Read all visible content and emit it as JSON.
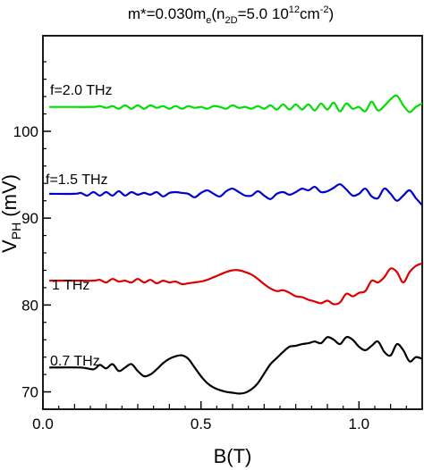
{
  "chart_data": {
    "type": "line",
    "title": {
      "parts": [
        {
          "text": "m*=0.030m",
          "style": "normal"
        },
        {
          "text": "e",
          "style": "sub"
        },
        {
          "text": "(n",
          "style": "normal"
        },
        {
          "text": "2D",
          "style": "sub"
        },
        {
          "text": "=5.0 10",
          "style": "normal"
        },
        {
          "text": "12",
          "style": "sup"
        },
        {
          "text": "cm",
          "style": "normal"
        },
        {
          "text": "-2",
          "style": "sup"
        },
        {
          "text": ")",
          "style": "normal"
        }
      ]
    },
    "xlabel": "B(T)",
    "ylabel": {
      "main": "V",
      "sub": "PH",
      "rest": " (mV)"
    },
    "xlim": [
      0,
      1.2
    ],
    "ylim": [
      68,
      111
    ],
    "xticks": [
      0.0,
      0.5,
      1.0
    ],
    "xtick_labels": [
      "0.0",
      "0.5",
      "1.0"
    ],
    "yticks": [
      70,
      80,
      90,
      100
    ],
    "ytick_labels": [
      "70",
      "80",
      "90",
      "100"
    ],
    "grid": false,
    "legend": "none",
    "series": [
      {
        "name": "f=2.0 THz",
        "color": "#00dd00",
        "x": [
          0.02,
          0.1,
          0.16,
          0.18,
          0.2,
          0.22,
          0.24,
          0.26,
          0.28,
          0.3,
          0.32,
          0.34,
          0.36,
          0.38,
          0.4,
          0.42,
          0.44,
          0.46,
          0.48,
          0.5,
          0.52,
          0.54,
          0.56,
          0.58,
          0.6,
          0.62,
          0.64,
          0.66,
          0.68,
          0.7,
          0.72,
          0.74,
          0.76,
          0.78,
          0.8,
          0.82,
          0.84,
          0.86,
          0.88,
          0.9,
          0.92,
          0.94,
          0.96,
          0.98,
          1.0,
          1.02,
          1.04,
          1.06,
          1.08,
          1.1,
          1.12,
          1.14,
          1.16,
          1.18,
          1.2
        ],
        "y": [
          102.8,
          102.8,
          102.8,
          102.9,
          102.7,
          102.9,
          102.6,
          103.0,
          102.6,
          103.0,
          102.6,
          103.0,
          102.7,
          102.9,
          102.6,
          102.9,
          102.6,
          102.9,
          102.7,
          102.8,
          102.6,
          102.9,
          102.8,
          102.6,
          103.0,
          102.7,
          102.8,
          102.6,
          102.9,
          102.6,
          103.0,
          102.5,
          103.1,
          102.5,
          103.1,
          102.5,
          103.1,
          102.4,
          103.2,
          102.5,
          103.3,
          102.3,
          103.2,
          102.6,
          102.8,
          102.3,
          103.4,
          102.4,
          102.9,
          103.7,
          104.1,
          103.0,
          102.2,
          102.8,
          103.2
        ]
      },
      {
        "name": "f=1.5 THz",
        "color": "#0000cc",
        "x": [
          0.02,
          0.1,
          0.12,
          0.14,
          0.16,
          0.18,
          0.2,
          0.22,
          0.24,
          0.26,
          0.28,
          0.3,
          0.32,
          0.34,
          0.36,
          0.38,
          0.4,
          0.42,
          0.44,
          0.46,
          0.48,
          0.5,
          0.52,
          0.54,
          0.56,
          0.58,
          0.6,
          0.62,
          0.64,
          0.66,
          0.68,
          0.7,
          0.72,
          0.74,
          0.76,
          0.78,
          0.8,
          0.82,
          0.84,
          0.86,
          0.88,
          0.9,
          0.92,
          0.94,
          0.96,
          0.98,
          1.0,
          1.02,
          1.04,
          1.06,
          1.08,
          1.1,
          1.12,
          1.14,
          1.16,
          1.18,
          1.2
        ],
        "y": [
          92.8,
          92.8,
          92.9,
          92.6,
          93.0,
          92.6,
          93.0,
          92.6,
          93.1,
          92.6,
          93.0,
          92.7,
          92.9,
          92.7,
          93.0,
          92.5,
          92.9,
          93.0,
          92.9,
          92.8,
          92.4,
          92.9,
          93.2,
          92.8,
          92.5,
          93.1,
          93.4,
          93.0,
          92.6,
          92.6,
          93.1,
          92.6,
          92.2,
          92.8,
          93.0,
          92.7,
          93.0,
          93.4,
          93.2,
          93.6,
          93.0,
          93.1,
          93.5,
          93.9,
          93.3,
          92.6,
          92.8,
          93.4,
          92.5,
          92.3,
          93.4,
          92.8,
          92.0,
          92.6,
          93.2,
          92.3,
          91.5
        ]
      },
      {
        "name": "1 THz",
        "color": "#dd0000",
        "x": [
          0.02,
          0.1,
          0.16,
          0.18,
          0.2,
          0.22,
          0.24,
          0.26,
          0.28,
          0.3,
          0.32,
          0.34,
          0.36,
          0.38,
          0.4,
          0.42,
          0.44,
          0.46,
          0.48,
          0.5,
          0.52,
          0.54,
          0.56,
          0.58,
          0.6,
          0.62,
          0.64,
          0.66,
          0.68,
          0.7,
          0.72,
          0.74,
          0.76,
          0.78,
          0.8,
          0.82,
          0.84,
          0.86,
          0.88,
          0.9,
          0.92,
          0.94,
          0.96,
          0.98,
          1.0,
          1.02,
          1.04,
          1.06,
          1.08,
          1.1,
          1.12,
          1.14,
          1.16,
          1.18,
          1.2
        ],
        "y": [
          82.8,
          82.8,
          82.8,
          82.9,
          82.6,
          83.0,
          82.7,
          82.8,
          82.6,
          83.0,
          82.6,
          82.9,
          82.5,
          82.8,
          82.6,
          82.7,
          82.4,
          82.5,
          82.6,
          82.7,
          82.9,
          83.2,
          83.5,
          83.8,
          84.0,
          84.0,
          83.8,
          83.5,
          83.0,
          82.4,
          81.9,
          81.6,
          81.7,
          81.4,
          81.0,
          80.9,
          80.6,
          80.4,
          80.2,
          80.5,
          80.1,
          80.3,
          81.3,
          81.0,
          81.4,
          81.6,
          82.8,
          82.6,
          83.2,
          84.2,
          83.8,
          82.6,
          83.8,
          84.5,
          84.8
        ]
      },
      {
        "name": "0.7 THz",
        "color": "#000000",
        "x": [
          0.02,
          0.12,
          0.16,
          0.18,
          0.2,
          0.22,
          0.24,
          0.26,
          0.28,
          0.3,
          0.32,
          0.34,
          0.36,
          0.38,
          0.4,
          0.42,
          0.44,
          0.46,
          0.48,
          0.5,
          0.52,
          0.54,
          0.56,
          0.58,
          0.6,
          0.62,
          0.64,
          0.66,
          0.68,
          0.7,
          0.72,
          0.74,
          0.76,
          0.78,
          0.8,
          0.82,
          0.84,
          0.86,
          0.88,
          0.9,
          0.92,
          0.94,
          0.96,
          0.98,
          1.0,
          1.02,
          1.04,
          1.06,
          1.08,
          1.1,
          1.12,
          1.14,
          1.16,
          1.18,
          1.2
        ],
        "y": [
          72.8,
          72.8,
          72.6,
          73.1,
          72.7,
          73.2,
          72.4,
          72.8,
          73.2,
          72.4,
          71.8,
          72.0,
          72.6,
          73.3,
          73.8,
          74.1,
          74.2,
          73.8,
          72.8,
          71.8,
          71.0,
          70.5,
          70.2,
          70.0,
          69.9,
          69.8,
          69.9,
          70.3,
          71.0,
          72.1,
          73.2,
          73.9,
          74.6,
          75.2,
          75.3,
          75.5,
          75.6,
          75.8,
          75.6,
          76.3,
          76.0,
          75.5,
          76.3,
          76.0,
          75.2,
          74.8,
          75.3,
          75.8,
          74.6,
          74.2,
          75.5,
          74.8,
          73.5,
          74.0,
          73.8
        ]
      }
    ]
  }
}
